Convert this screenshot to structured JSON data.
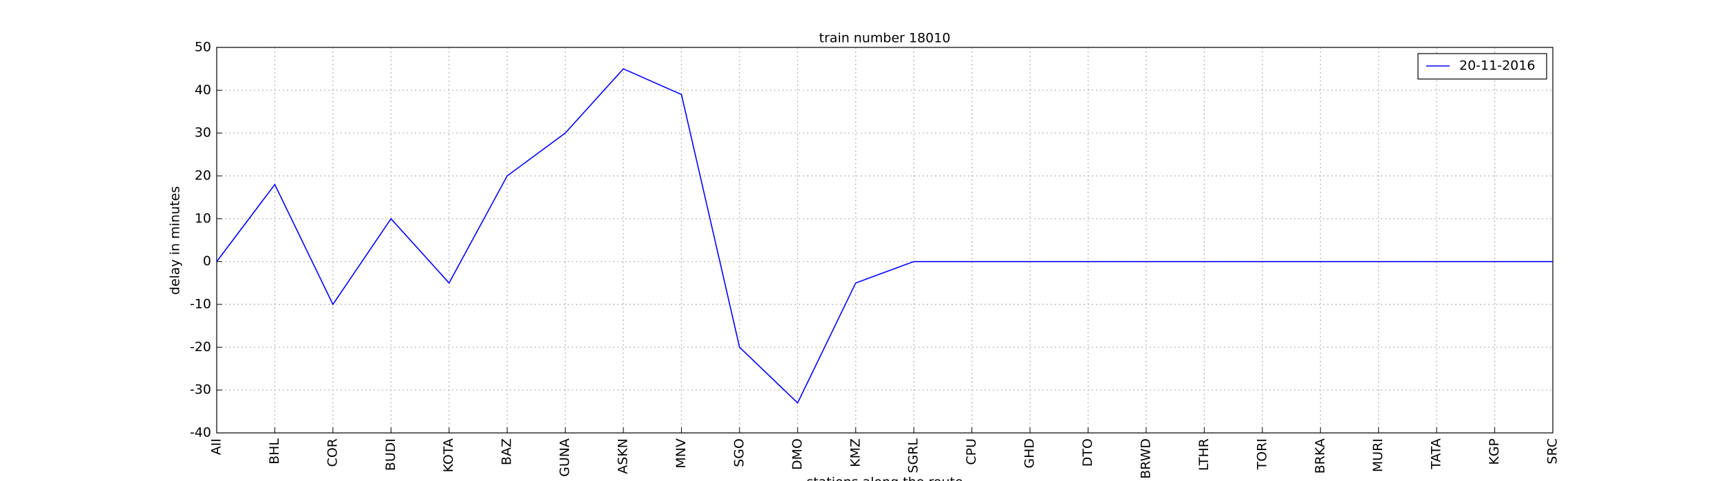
{
  "chart_data": {
    "type": "line",
    "title": "train number 18010",
    "x_label": "stations along the route",
    "y_label": "delay in minutes",
    "categories": [
      "AII",
      "BHL",
      "COR",
      "BUDI",
      "KOTA",
      "BAZ",
      "GUNA",
      "ASKN",
      "MNV",
      "SGO",
      "DMO",
      "KMZ",
      "SGRL",
      "CPU",
      "GHD",
      "DTO",
      "BRWD",
      "LTHR",
      "TORI",
      "BRKA",
      "MURI",
      "TATA",
      "KGP",
      "SRC"
    ],
    "series": [
      {
        "name": "20-11-2016",
        "color": "#0000ff",
        "values": [
          0,
          18,
          -10,
          10,
          -5,
          20,
          30,
          45,
          39,
          -20,
          -33,
          -5,
          0,
          0,
          0,
          0,
          0,
          0,
          0,
          0,
          0,
          0,
          0,
          0
        ]
      }
    ],
    "ylim": [
      -40,
      50
    ],
    "yticks": [
      -40,
      -30,
      -20,
      -10,
      0,
      10,
      20,
      30,
      40,
      50
    ],
    "grid": true,
    "legend": "upper right"
  }
}
